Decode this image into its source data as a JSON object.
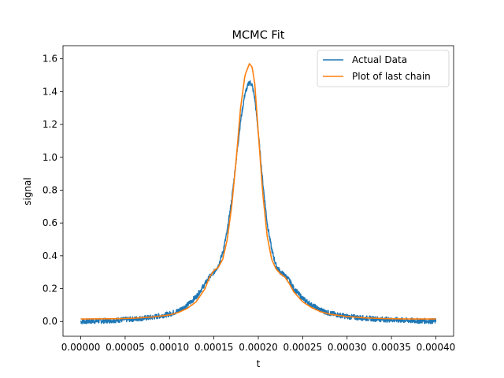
{
  "chart_data": {
    "type": "line",
    "title": "MCMC Fit",
    "xlabel": "t",
    "ylabel": "signal",
    "xlim": [
      -2e-05,
      0.00042
    ],
    "ylim": [
      -0.09,
      1.68
    ],
    "x_tick_values": [
      0,
      5e-05,
      0.0001,
      0.00015,
      0.0002,
      0.00025,
      0.0003,
      0.00035,
      0.0004
    ],
    "x_tick_labels": [
      "0.00000",
      "0.00005",
      "0.00010",
      "0.00015",
      "0.00020",
      "0.00025",
      "0.00030",
      "0.00035",
      "0.00040"
    ],
    "y_tick_values": [
      0,
      0.2,
      0.4,
      0.6,
      0.8,
      1.0,
      1.2,
      1.4,
      1.6
    ],
    "y_tick_labels": [
      "0.0",
      "0.2",
      "0.4",
      "0.6",
      "0.8",
      "1.0",
      "1.2",
      "1.4",
      "1.6"
    ],
    "legend_position": "top-right",
    "grid": false,
    "series": [
      {
        "name": "Actual Data",
        "color": "#1f77b4",
        "noisy": true,
        "x": [
          0,
          2e-05,
          4e-05,
          6e-05,
          8e-05,
          0.0001,
          0.00011,
          0.00012,
          0.00013,
          0.00014,
          0.000145,
          0.00015,
          0.000155,
          0.00016,
          0.000165,
          0.00017,
          0.000175,
          0.00018,
          0.000185,
          0.00019,
          0.000193,
          0.000196,
          0.0002,
          0.000205,
          0.00021,
          0.000215,
          0.00022,
          0.000225,
          0.00023,
          0.000235,
          0.00024,
          0.00025,
          0.00026,
          0.00027,
          0.00028,
          0.0003,
          0.00032,
          0.00034,
          0.00036,
          0.00038,
          0.0004
        ],
        "y": [
          0.0,
          0.003,
          0.008,
          0.015,
          0.025,
          0.045,
          0.065,
          0.1,
          0.15,
          0.23,
          0.27,
          0.3,
          0.34,
          0.42,
          0.55,
          0.74,
          0.98,
          1.22,
          1.39,
          1.46,
          1.44,
          1.36,
          1.15,
          0.85,
          0.6,
          0.44,
          0.34,
          0.3,
          0.28,
          0.25,
          0.2,
          0.14,
          0.1,
          0.07,
          0.05,
          0.03,
          0.02,
          0.013,
          0.008,
          0.004,
          0.002
        ]
      },
      {
        "name": "Plot of last chain",
        "color": "#ff7f0e",
        "noisy": false,
        "x": [
          0,
          2e-05,
          4e-05,
          6e-05,
          8e-05,
          0.0001,
          0.00011,
          0.00012,
          0.00013,
          0.00014,
          0.000145,
          0.00015,
          0.000155,
          0.00016,
          0.000165,
          0.00017,
          0.000175,
          0.00018,
          0.000185,
          0.00019,
          0.000193,
          0.000196,
          0.0002,
          0.000205,
          0.00021,
          0.000215,
          0.00022,
          0.000225,
          0.00023,
          0.000235,
          0.00024,
          0.00025,
          0.00026,
          0.00027,
          0.00028,
          0.0003,
          0.00032,
          0.00034,
          0.00036,
          0.00038,
          0.0004
        ],
        "y": [
          0.015,
          0.016,
          0.017,
          0.02,
          0.027,
          0.04,
          0.055,
          0.08,
          0.12,
          0.2,
          0.27,
          0.31,
          0.33,
          0.38,
          0.5,
          0.7,
          0.98,
          1.3,
          1.5,
          1.57,
          1.55,
          1.45,
          1.15,
          0.78,
          0.52,
          0.38,
          0.32,
          0.29,
          0.27,
          0.23,
          0.18,
          0.12,
          0.085,
          0.06,
          0.045,
          0.03,
          0.022,
          0.018,
          0.016,
          0.015,
          0.015
        ]
      }
    ]
  }
}
